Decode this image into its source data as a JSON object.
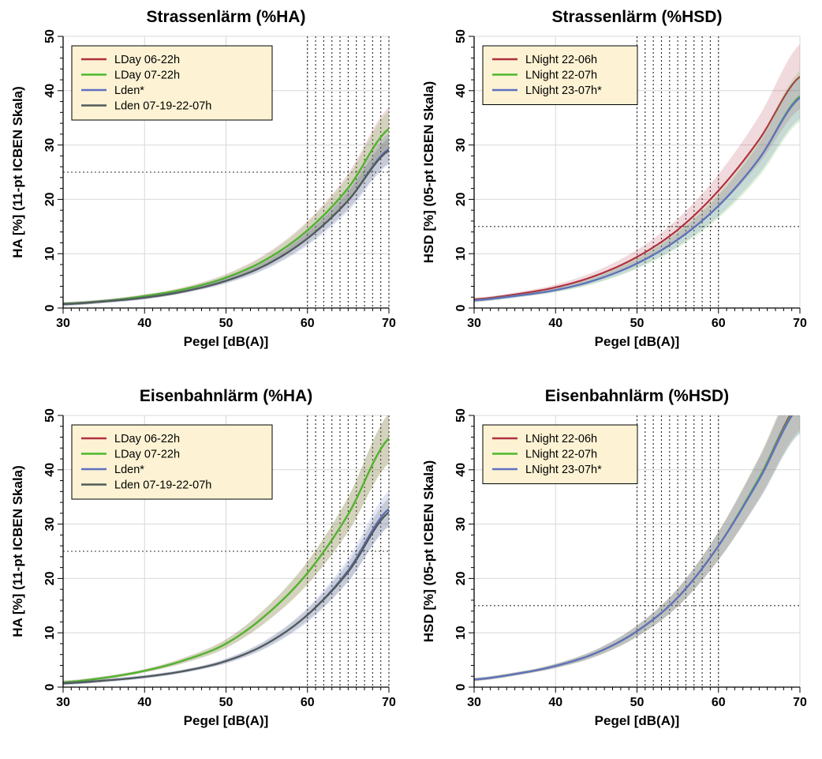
{
  "figure_colors": {
    "LDay 06-22h": "#b03040",
    "LDay 07-22h": "#4cb82c",
    "Lden*": "#6070c0",
    "Lden 07-19-22-07h": "#505a5a",
    "LNight 22-06h": "#b03040",
    "LNight 22-07h": "#4cb82c",
    "LNight 23-07h*": "#6070c0",
    "legend_background": "#fdf3d4",
    "grid": "#d8d8d8"
  },
  "chart_data": [
    {
      "type": "line",
      "title": "Strassenlärm (%HA)",
      "xlabel": "Pegel [dB(A)]",
      "ylabel": "HA [%] (11-pt ICBEN Skala)",
      "xlim": [
        30,
        70
      ],
      "ylim": [
        0,
        50
      ],
      "x_ticks": [
        30,
        40,
        50,
        60,
        70
      ],
      "y_ticks": [
        0,
        10,
        20,
        30,
        40,
        50
      ],
      "grid": true,
      "legend_position": "top-left",
      "threshold_y": 25,
      "vertical_reference_lines": [
        60,
        61,
        62,
        63,
        64,
        65,
        66,
        67,
        68,
        69,
        70
      ],
      "x": [
        30,
        35,
        40,
        45,
        50,
        55,
        60,
        65,
        70
      ],
      "series": [
        {
          "name": "LDay 06-22h",
          "values": [
            0.8,
            1.3,
            2.2,
            3.5,
            5.6,
            9.0,
            14.3,
            22.1,
            33.0
          ],
          "band": 0.12
        },
        {
          "name": "LDay 07-22h",
          "values": [
            0.8,
            1.3,
            2.2,
            3.5,
            5.6,
            9.0,
            14.3,
            22.1,
            33.0
          ],
          "band": 0.1
        },
        {
          "name": "Lden*",
          "values": [
            0.7,
            1.2,
            1.9,
            3.1,
            5.0,
            8.0,
            12.8,
            19.8,
            29.3
          ],
          "band": 0.1
        },
        {
          "name": "Lden 07-19-22-07h",
          "values": [
            0.7,
            1.2,
            1.9,
            3.1,
            5.0,
            8.0,
            12.8,
            19.8,
            29.0
          ],
          "band": 0.08
        }
      ]
    },
    {
      "type": "line",
      "title": "Strassenlärm (%HSD)",
      "xlabel": "Pegel [dB(A)]",
      "ylabel": "HSD [%] (05-pt ICBEN Skala)",
      "xlim": [
        30,
        70
      ],
      "ylim": [
        0,
        50
      ],
      "x_ticks": [
        30,
        40,
        50,
        60,
        70
      ],
      "y_ticks": [
        0,
        10,
        20,
        30,
        40,
        50
      ],
      "grid": true,
      "legend_position": "top-left",
      "threshold_y": 15,
      "vertical_reference_lines": [
        50,
        51,
        52,
        53,
        54,
        55,
        56,
        57,
        58,
        59,
        60
      ],
      "x": [
        30,
        35,
        40,
        45,
        50,
        55,
        60,
        65,
        70
      ],
      "series": [
        {
          "name": "LNight 22-06h",
          "values": [
            1.6,
            2.5,
            3.8,
            6.0,
            9.4,
            14.4,
            21.6,
            31.0,
            42.6
          ],
          "band": 0.14
        },
        {
          "name": "LNight 22-07h",
          "values": [
            1.4,
            2.2,
            3.3,
            5.2,
            8.2,
            12.6,
            18.8,
            27.5,
            39.0
          ],
          "band": 0.12
        },
        {
          "name": "LNight 23-07h*",
          "values": [
            1.4,
            2.2,
            3.3,
            5.2,
            8.2,
            12.6,
            18.8,
            27.5,
            38.7
          ],
          "band": 0.1
        }
      ]
    },
    {
      "type": "line",
      "title": "Eisenbahnlärm (%HA)",
      "xlabel": "Pegel [dB(A)]",
      "ylabel": "HA [%] (11-pt ICBEN Skala)",
      "xlim": [
        30,
        70
      ],
      "ylim": [
        0,
        50
      ],
      "x_ticks": [
        30,
        40,
        50,
        60,
        70
      ],
      "y_ticks": [
        0,
        10,
        20,
        30,
        40,
        50
      ],
      "grid": true,
      "legend_position": "top-left",
      "threshold_y": 25,
      "vertical_reference_lines": [
        60,
        61,
        62,
        63,
        64,
        65,
        66,
        67,
        68,
        69,
        70
      ],
      "x": [
        30,
        35,
        40,
        45,
        50,
        55,
        60,
        65,
        70
      ],
      "series": [
        {
          "name": "LDay 06-22h",
          "values": [
            0.9,
            1.7,
            3.0,
            5.0,
            8.0,
            13.4,
            21.0,
            31.8,
            45.8
          ],
          "band": 0.1
        },
        {
          "name": "LDay 07-22h",
          "values": [
            0.9,
            1.7,
            3.0,
            5.0,
            8.0,
            13.4,
            21.0,
            31.8,
            45.8
          ],
          "band": 0.1
        },
        {
          "name": "Lden*",
          "values": [
            0.7,
            1.2,
            1.9,
            3.0,
            4.8,
            8.0,
            13.3,
            21.5,
            32.8
          ],
          "band": 0.1
        },
        {
          "name": "Lden 07-19-22-07h",
          "values": [
            0.7,
            1.2,
            1.9,
            3.0,
            4.8,
            8.0,
            13.3,
            21.2,
            32.2
          ],
          "band": 0.08
        }
      ]
    },
    {
      "type": "line",
      "title": "Eisenbahnlärm (%HSD)",
      "xlabel": "Pegel [dB(A)]",
      "ylabel": "HSD [%] (05-pt ICBEN Skala)",
      "xlim": [
        30,
        70
      ],
      "ylim": [
        0,
        50
      ],
      "x_ticks": [
        30,
        40,
        50,
        60,
        70
      ],
      "y_ticks": [
        0,
        10,
        20,
        30,
        40,
        50
      ],
      "grid": true,
      "legend_position": "top-left",
      "threshold_y": 15,
      "vertical_reference_lines": [
        50,
        51,
        52,
        53,
        54,
        55,
        56,
        57,
        58,
        59,
        60
      ],
      "x": [
        30,
        35,
        40,
        45,
        50,
        55,
        60,
        65,
        70
      ],
      "series": [
        {
          "name": "LNight 22-06h",
          "values": [
            1.4,
            2.4,
            3.9,
            6.3,
            10.3,
            16.5,
            26.0,
            38.5,
            52.5
          ],
          "band": 0.1
        },
        {
          "name": "LNight 22-07h",
          "values": [
            1.4,
            2.4,
            3.9,
            6.3,
            10.3,
            16.5,
            26.0,
            38.5,
            52.0
          ],
          "band": 0.1
        },
        {
          "name": "LNight 23-07h*",
          "values": [
            1.4,
            2.4,
            3.9,
            6.3,
            10.3,
            16.5,
            26.0,
            38.2,
            51.8
          ],
          "band": 0.1
        }
      ]
    }
  ]
}
